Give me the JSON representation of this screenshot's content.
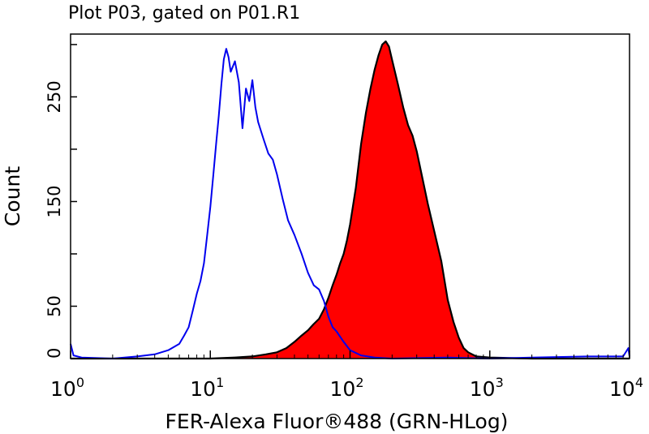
{
  "chart_data": {
    "type": "area",
    "title": "Plot P03, gated on P01.R1",
    "xlabel": "FER-Alexa Fluor®488 (GRN-HLog)",
    "ylabel": "Count",
    "xscale": "log",
    "xlim": [
      1,
      10000
    ],
    "ylim": [
      0,
      310
    ],
    "x_ticks": [
      {
        "base": "10",
        "exp": "0",
        "value": 1
      },
      {
        "base": "10",
        "exp": "1",
        "value": 10
      },
      {
        "base": "10",
        "exp": "2",
        "value": 100
      },
      {
        "base": "10",
        "exp": "3",
        "value": 1000
      },
      {
        "base": "10",
        "exp": "4",
        "value": 10000
      }
    ],
    "y_ticks": [
      {
        "label": "0",
        "value": 0
      },
      {
        "label": "50",
        "value": 50
      },
      {
        "label": "150",
        "value": 150
      },
      {
        "label": "250",
        "value": 250
      }
    ],
    "grid": false,
    "legend": false,
    "series": [
      {
        "style": "filled",
        "color": "#ff0000",
        "edge_color": "#000000",
        "points": [
          [
            1.0,
            0
          ],
          [
            5.0,
            0
          ],
          [
            10.0,
            0
          ],
          [
            15.0,
            1
          ],
          [
            20.0,
            2
          ],
          [
            25.0,
            4
          ],
          [
            30.0,
            6
          ],
          [
            35.0,
            10
          ],
          [
            40.0,
            16
          ],
          [
            45.0,
            22
          ],
          [
            50.0,
            27
          ],
          [
            55.0,
            33
          ],
          [
            60.0,
            38
          ],
          [
            65.0,
            47
          ],
          [
            70.0,
            58
          ],
          [
            75.0,
            70
          ],
          [
            80.0,
            80
          ],
          [
            85.0,
            91
          ],
          [
            90.0,
            100
          ],
          [
            95.0,
            113
          ],
          [
            100.0,
            128
          ],
          [
            110.0,
            163
          ],
          [
            120.0,
            205
          ],
          [
            130.0,
            235
          ],
          [
            140.0,
            258
          ],
          [
            150.0,
            276
          ],
          [
            160.0,
            290
          ],
          [
            170.0,
            300
          ],
          [
            180.0,
            303
          ],
          [
            190.0,
            298
          ],
          [
            200.0,
            285
          ],
          [
            220.0,
            262
          ],
          [
            240.0,
            240
          ],
          [
            260.0,
            223
          ],
          [
            280.0,
            213
          ],
          [
            300.0,
            198
          ],
          [
            330.0,
            172
          ],
          [
            360.0,
            148
          ],
          [
            400.0,
            122
          ],
          [
            450.0,
            93
          ],
          [
            500.0,
            56
          ],
          [
            550.0,
            35
          ],
          [
            600.0,
            20
          ],
          [
            650.0,
            10
          ],
          [
            700.0,
            6
          ],
          [
            800.0,
            2
          ],
          [
            1000.0,
            1
          ],
          [
            2000.0,
            0
          ],
          [
            5000.0,
            0
          ],
          [
            10000.0,
            0
          ]
        ]
      },
      {
        "style": "line",
        "color": "#0000ee",
        "points": [
          [
            1.0,
            14
          ],
          [
            1.05,
            3
          ],
          [
            1.2,
            1
          ],
          [
            2.0,
            0
          ],
          [
            3.0,
            2
          ],
          [
            4.0,
            4
          ],
          [
            5.0,
            8
          ],
          [
            6.0,
            14
          ],
          [
            6.5,
            22
          ],
          [
            7.0,
            30
          ],
          [
            7.5,
            46
          ],
          [
            8.0,
            62
          ],
          [
            8.5,
            74
          ],
          [
            9.0,
            91
          ],
          [
            9.5,
            118
          ],
          [
            10.0,
            145
          ],
          [
            10.5,
            175
          ],
          [
            11.0,
            205
          ],
          [
            11.5,
            232
          ],
          [
            12.0,
            262
          ],
          [
            12.5,
            286
          ],
          [
            13.0,
            296
          ],
          [
            13.5,
            288
          ],
          [
            14.0,
            274
          ],
          [
            15.0,
            284
          ],
          [
            16.0,
            264
          ],
          [
            17.0,
            220
          ],
          [
            18.0,
            258
          ],
          [
            19.0,
            246
          ],
          [
            20.0,
            266
          ],
          [
            21.0,
            240
          ],
          [
            22.0,
            226
          ],
          [
            24.0,
            210
          ],
          [
            26.0,
            196
          ],
          [
            28.0,
            190
          ],
          [
            30.0,
            176
          ],
          [
            33.0,
            152
          ],
          [
            36.0,
            132
          ],
          [
            40.0,
            118
          ],
          [
            45.0,
            100
          ],
          [
            50.0,
            82
          ],
          [
            55.0,
            70
          ],
          [
            60.0,
            66
          ],
          [
            65.0,
            55
          ],
          [
            70.0,
            40
          ],
          [
            75.0,
            30
          ],
          [
            80.0,
            26
          ],
          [
            90.0,
            16
          ],
          [
            100.0,
            8
          ],
          [
            120.0,
            3
          ],
          [
            150.0,
            1
          ],
          [
            200.0,
            0
          ],
          [
            500.0,
            1
          ],
          [
            1000.0,
            0
          ],
          [
            2000.0,
            1
          ],
          [
            5000.0,
            2
          ],
          [
            9000.0,
            2
          ],
          [
            9800.0,
            10
          ],
          [
            10000.0,
            2
          ]
        ]
      }
    ]
  }
}
